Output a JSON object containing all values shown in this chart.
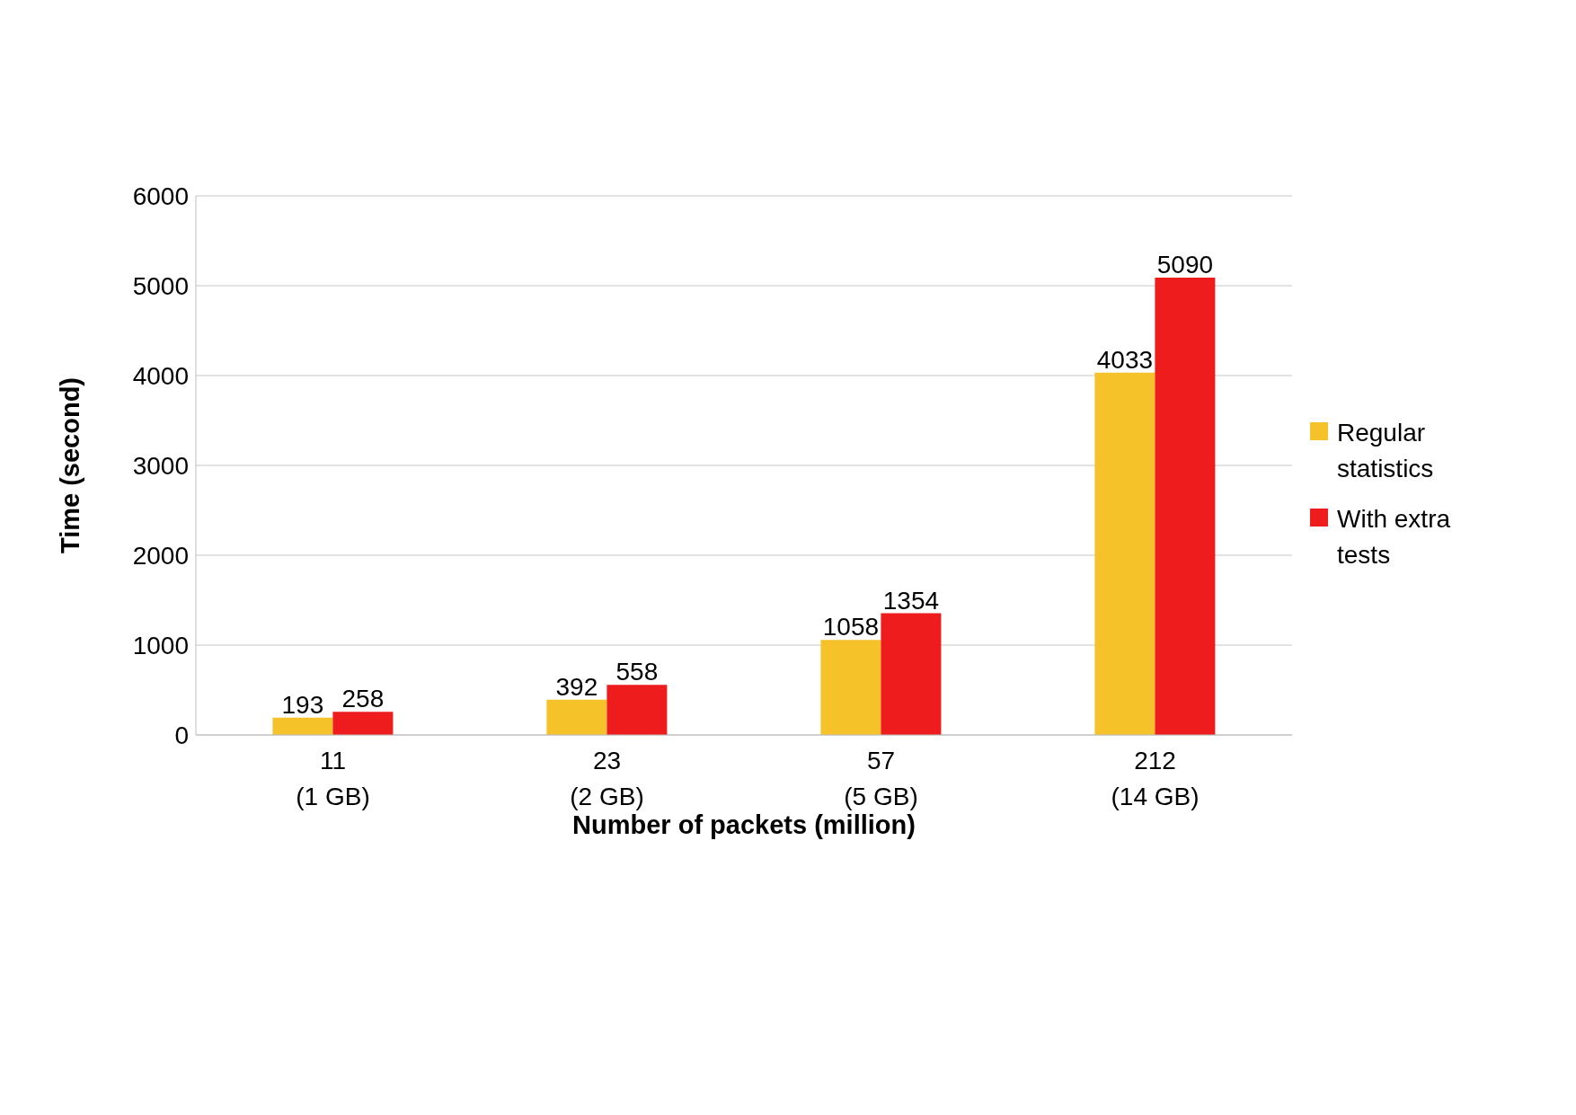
{
  "chart_data": {
    "type": "bar",
    "xlabel": "Number of packets (million)",
    "ylabel": "Time (second)",
    "categories": [
      "11\n(1 GB)",
      "23\n(2 GB)",
      "57\n(5 GB)",
      "212\n(14 GB)"
    ],
    "series": [
      {
        "name": "Regular statistics",
        "color": "#f5c22a",
        "values": [
          193,
          392,
          1058,
          4033
        ]
      },
      {
        "name": "With extra tests",
        "color": "#ee1c1c",
        "values": [
          258,
          558,
          1354,
          5090
        ]
      }
    ],
    "ylim": [
      0,
      6000
    ],
    "yticks": [
      0,
      1000,
      2000,
      3000,
      4000,
      5000,
      6000
    ],
    "grid": "y",
    "legend": "right",
    "data_labels": true
  }
}
